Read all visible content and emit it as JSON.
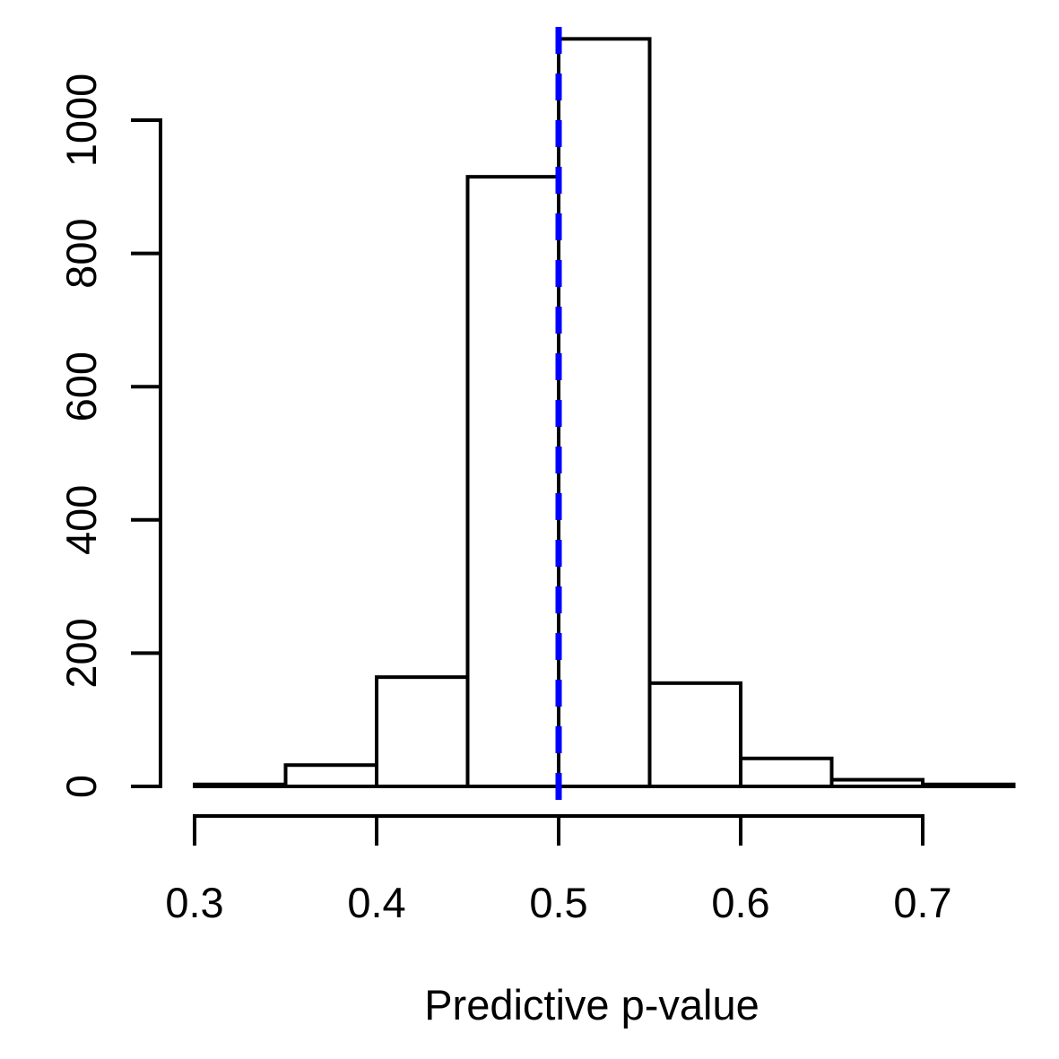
{
  "chart_data": {
    "type": "histogram",
    "title": "",
    "xlabel": "Predictive p-value",
    "ylabel": "",
    "bin_edges": [
      0.3,
      0.35,
      0.4,
      0.45,
      0.5,
      0.55,
      0.6,
      0.65,
      0.7,
      0.75
    ],
    "counts": [
      3,
      32,
      164,
      915,
      1122,
      155,
      42,
      10,
      3
    ],
    "x_ticks": [
      0.3,
      0.4,
      0.5,
      0.6,
      0.7
    ],
    "x_tick_labels": [
      "0.3",
      "0.4",
      "0.5",
      "0.6",
      "0.7"
    ],
    "y_ticks": [
      0,
      200,
      400,
      600,
      800,
      1000
    ],
    "y_tick_labels": [
      "0",
      "200",
      "400",
      "600",
      "800",
      "1000"
    ],
    "xlim": [
      0.3,
      0.75
    ],
    "ylim": [
      0,
      1130
    ],
    "grid": false,
    "legend_position": "none",
    "bar_fill": "#ffffff",
    "bar_stroke": "#000000",
    "axis_color": "#000000",
    "text_color": "#000000",
    "vline": {
      "x": 0.5,
      "color": "#0000ff",
      "style": "dashed"
    }
  }
}
